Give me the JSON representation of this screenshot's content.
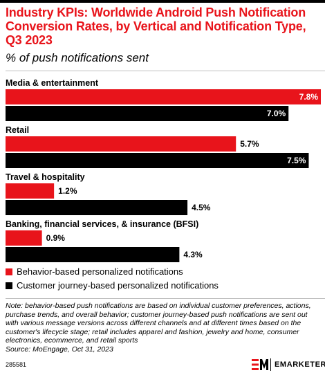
{
  "header": {
    "title": "Industry KPIs: Worldwide Android Push Notification Conversion Rates, by Vertical and Notification Type, Q3 2023",
    "subtitle": "% of push notifications sent"
  },
  "chart_data": {
    "type": "bar",
    "orientation": "horizontal",
    "categories": [
      "Media & entertainment",
      "Retail",
      "Travel & hospitality",
      "Banking, financial services, & insurance (BFSI)"
    ],
    "series": [
      {
        "name": "Behavior-based personalized notifications",
        "values": [
          7.8,
          5.7,
          1.2,
          0.9
        ],
        "labels": [
          "7.8%",
          "5.7%",
          "1.2%",
          "0.9%"
        ],
        "color": "#e8141b"
      },
      {
        "name": "Customer journey-based personalized notifications",
        "values": [
          7.0,
          7.5,
          4.5,
          4.3
        ],
        "labels": [
          "7.0%",
          "7.5%",
          "4.5%",
          "4.3%"
        ],
        "color": "#000000"
      }
    ],
    "xlim": [
      0,
      7.8
    ],
    "grid": false,
    "legend_position": "bottom"
  },
  "note": "Note: behavior-based push notifications are based on individual customer preferences, actions, purchase trends, and overall behavior; customer journey-based push notifications are sent out with various message versions across different channels and at different times based on the customer's lifecycle stage; retail includes apparel and fashion, jewelry and home, consumer electronics, ecommerce, and retail sports",
  "source": "Source: MoEngage, Oct 31, 2023",
  "footer": {
    "chart_id": "285581",
    "brand": "EMARKETER"
  }
}
